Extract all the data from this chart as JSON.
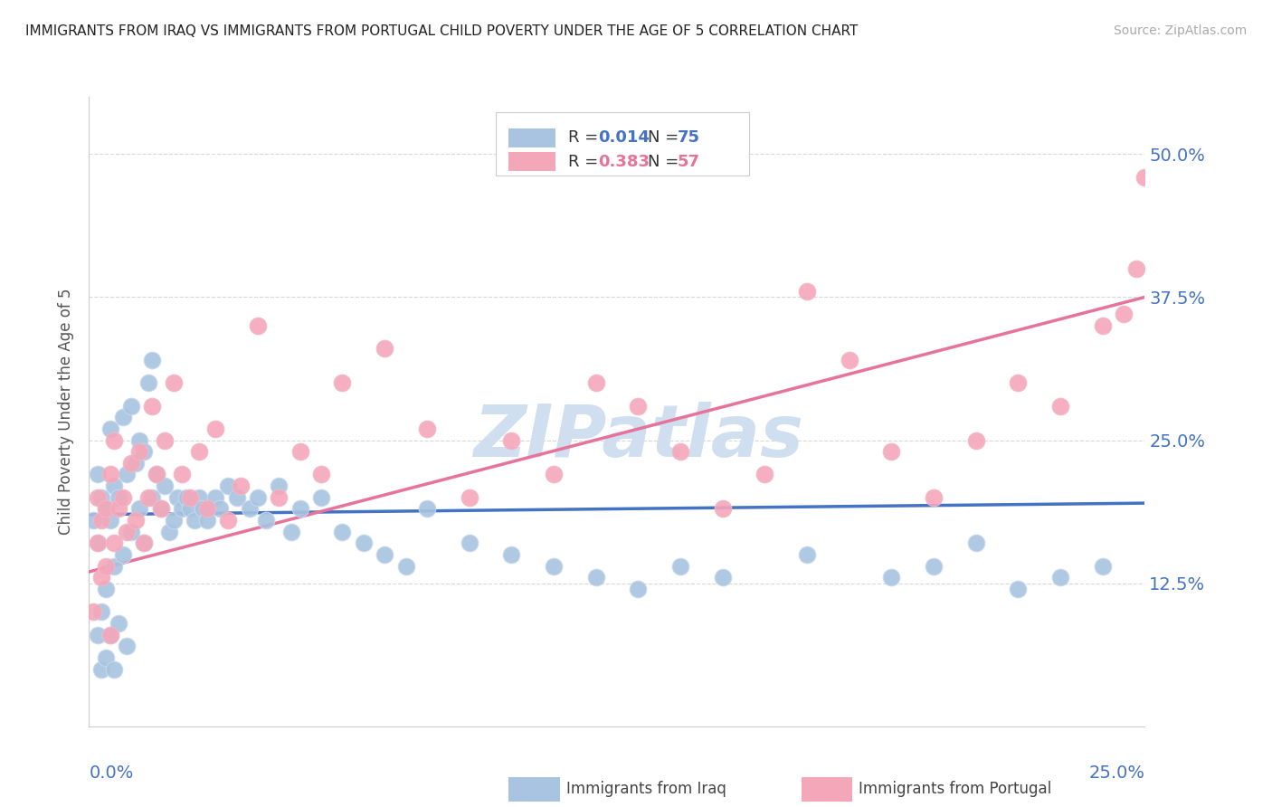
{
  "title": "IMMIGRANTS FROM IRAQ VS IMMIGRANTS FROM PORTUGAL CHILD POVERTY UNDER THE AGE OF 5 CORRELATION CHART",
  "source": "Source: ZipAtlas.com",
  "ylabel": "Child Poverty Under the Age of 5",
  "ytick_labels": [
    "12.5%",
    "25.0%",
    "37.5%",
    "50.0%"
  ],
  "ytick_values": [
    0.125,
    0.25,
    0.375,
    0.5
  ],
  "xlim": [
    0.0,
    0.25
  ],
  "ylim": [
    0.0,
    0.55
  ],
  "iraq_color": "#a8c4e0",
  "portugal_color": "#f4a7b9",
  "iraq_line_color": "#4472c4",
  "portugal_line_color": "#e8739a",
  "legend_iraq_text_color": "#4472c4",
  "legend_portugal_text_color": "#e8739a",
  "axis_label_color": "#4472c4",
  "background_color": "#ffffff",
  "grid_color": "#d8d8d8",
  "watermark_color": "#d0dff0",
  "iraq_line_y0": 0.185,
  "iraq_line_y1": 0.195,
  "portugal_line_y0": 0.135,
  "portugal_line_y1": 0.375,
  "iraq_scatter_x": [
    0.001,
    0.002,
    0.002,
    0.002,
    0.003,
    0.003,
    0.003,
    0.004,
    0.004,
    0.004,
    0.005,
    0.005,
    0.005,
    0.006,
    0.006,
    0.006,
    0.007,
    0.007,
    0.008,
    0.008,
    0.009,
    0.009,
    0.01,
    0.01,
    0.011,
    0.012,
    0.012,
    0.013,
    0.013,
    0.014,
    0.015,
    0.015,
    0.016,
    0.017,
    0.018,
    0.019,
    0.02,
    0.021,
    0.022,
    0.023,
    0.024,
    0.025,
    0.026,
    0.027,
    0.028,
    0.03,
    0.031,
    0.033,
    0.035,
    0.038,
    0.04,
    0.042,
    0.045,
    0.048,
    0.05,
    0.055,
    0.06,
    0.065,
    0.07,
    0.075,
    0.08,
    0.09,
    0.1,
    0.11,
    0.12,
    0.13,
    0.14,
    0.15,
    0.17,
    0.19,
    0.2,
    0.21,
    0.22,
    0.23,
    0.24
  ],
  "iraq_scatter_y": [
    0.18,
    0.22,
    0.16,
    0.08,
    0.2,
    0.1,
    0.05,
    0.19,
    0.12,
    0.06,
    0.26,
    0.18,
    0.08,
    0.21,
    0.14,
    0.05,
    0.2,
    0.09,
    0.27,
    0.15,
    0.22,
    0.07,
    0.28,
    0.17,
    0.23,
    0.25,
    0.19,
    0.24,
    0.16,
    0.3,
    0.32,
    0.2,
    0.22,
    0.19,
    0.21,
    0.17,
    0.18,
    0.2,
    0.19,
    0.2,
    0.19,
    0.18,
    0.2,
    0.19,
    0.18,
    0.2,
    0.19,
    0.21,
    0.2,
    0.19,
    0.2,
    0.18,
    0.21,
    0.17,
    0.19,
    0.2,
    0.17,
    0.16,
    0.15,
    0.14,
    0.19,
    0.16,
    0.15,
    0.14,
    0.13,
    0.12,
    0.14,
    0.13,
    0.15,
    0.13,
    0.14,
    0.16,
    0.12,
    0.13,
    0.14
  ],
  "portugal_scatter_x": [
    0.001,
    0.002,
    0.002,
    0.003,
    0.003,
    0.004,
    0.004,
    0.005,
    0.005,
    0.006,
    0.006,
    0.007,
    0.008,
    0.009,
    0.01,
    0.011,
    0.012,
    0.013,
    0.014,
    0.015,
    0.016,
    0.017,
    0.018,
    0.02,
    0.022,
    0.024,
    0.026,
    0.028,
    0.03,
    0.033,
    0.036,
    0.04,
    0.045,
    0.05,
    0.055,
    0.06,
    0.07,
    0.08,
    0.09,
    0.1,
    0.11,
    0.12,
    0.13,
    0.14,
    0.15,
    0.16,
    0.17,
    0.18,
    0.19,
    0.2,
    0.21,
    0.22,
    0.23,
    0.24,
    0.245,
    0.248,
    0.25
  ],
  "portugal_scatter_y": [
    0.1,
    0.2,
    0.16,
    0.18,
    0.13,
    0.19,
    0.14,
    0.22,
    0.08,
    0.25,
    0.16,
    0.19,
    0.2,
    0.17,
    0.23,
    0.18,
    0.24,
    0.16,
    0.2,
    0.28,
    0.22,
    0.19,
    0.25,
    0.3,
    0.22,
    0.2,
    0.24,
    0.19,
    0.26,
    0.18,
    0.21,
    0.35,
    0.2,
    0.24,
    0.22,
    0.3,
    0.33,
    0.26,
    0.2,
    0.25,
    0.22,
    0.3,
    0.28,
    0.24,
    0.19,
    0.22,
    0.38,
    0.32,
    0.24,
    0.2,
    0.25,
    0.3,
    0.28,
    0.35,
    0.36,
    0.4,
    0.48
  ],
  "bottom_legend_iraq": "Immigrants from Iraq",
  "bottom_legend_portugal": "Immigrants from Portugal"
}
